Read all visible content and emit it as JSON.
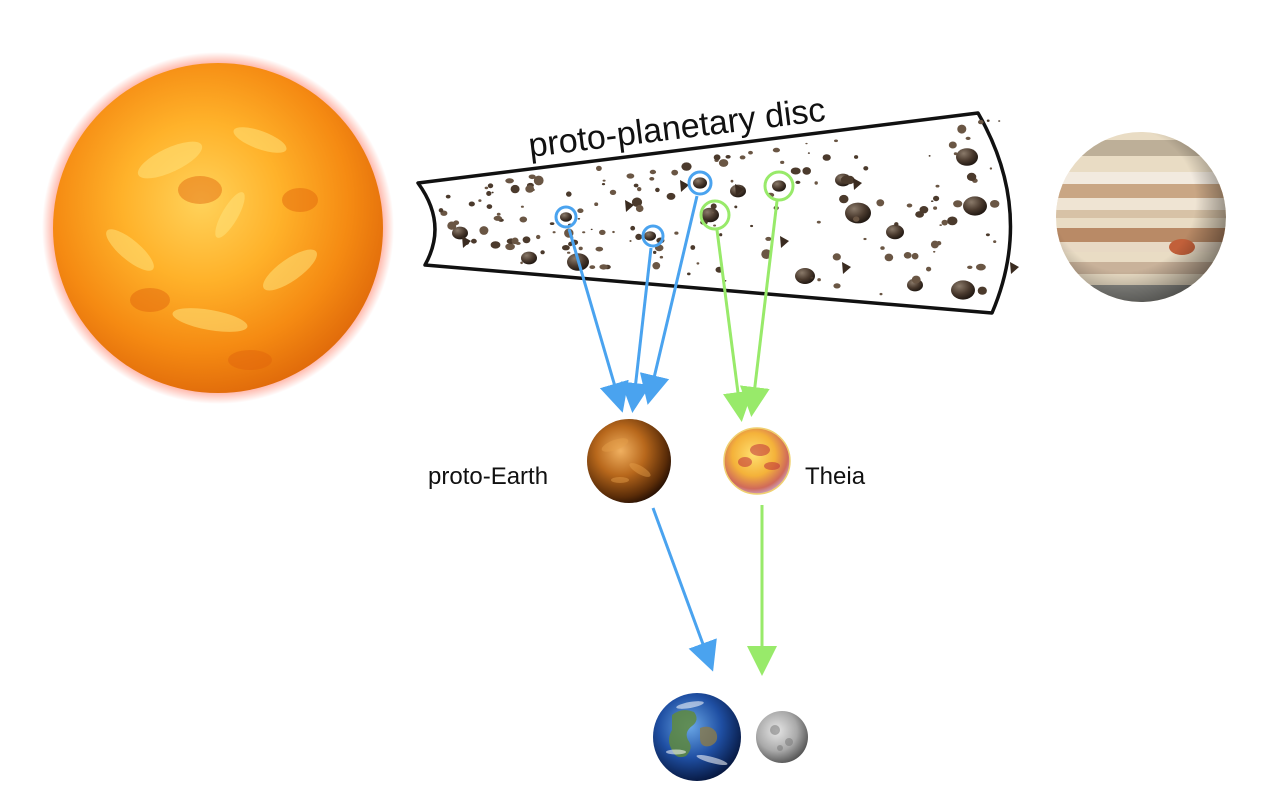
{
  "title": "proto-planetary disc",
  "labels": {
    "proto_earth": "proto-Earth",
    "theia": "Theia"
  },
  "bodies": {
    "sun": "sun-icon",
    "jupiter": "jupiter-icon",
    "proto_earth": "proto-earth-icon",
    "theia": "theia-icon",
    "earth": "earth-icon",
    "moon": "moon-icon"
  },
  "colors": {
    "proto_earth_path": "#4aa3ef",
    "theia_path": "#98ea6a",
    "disc_outline": "#111111"
  }
}
